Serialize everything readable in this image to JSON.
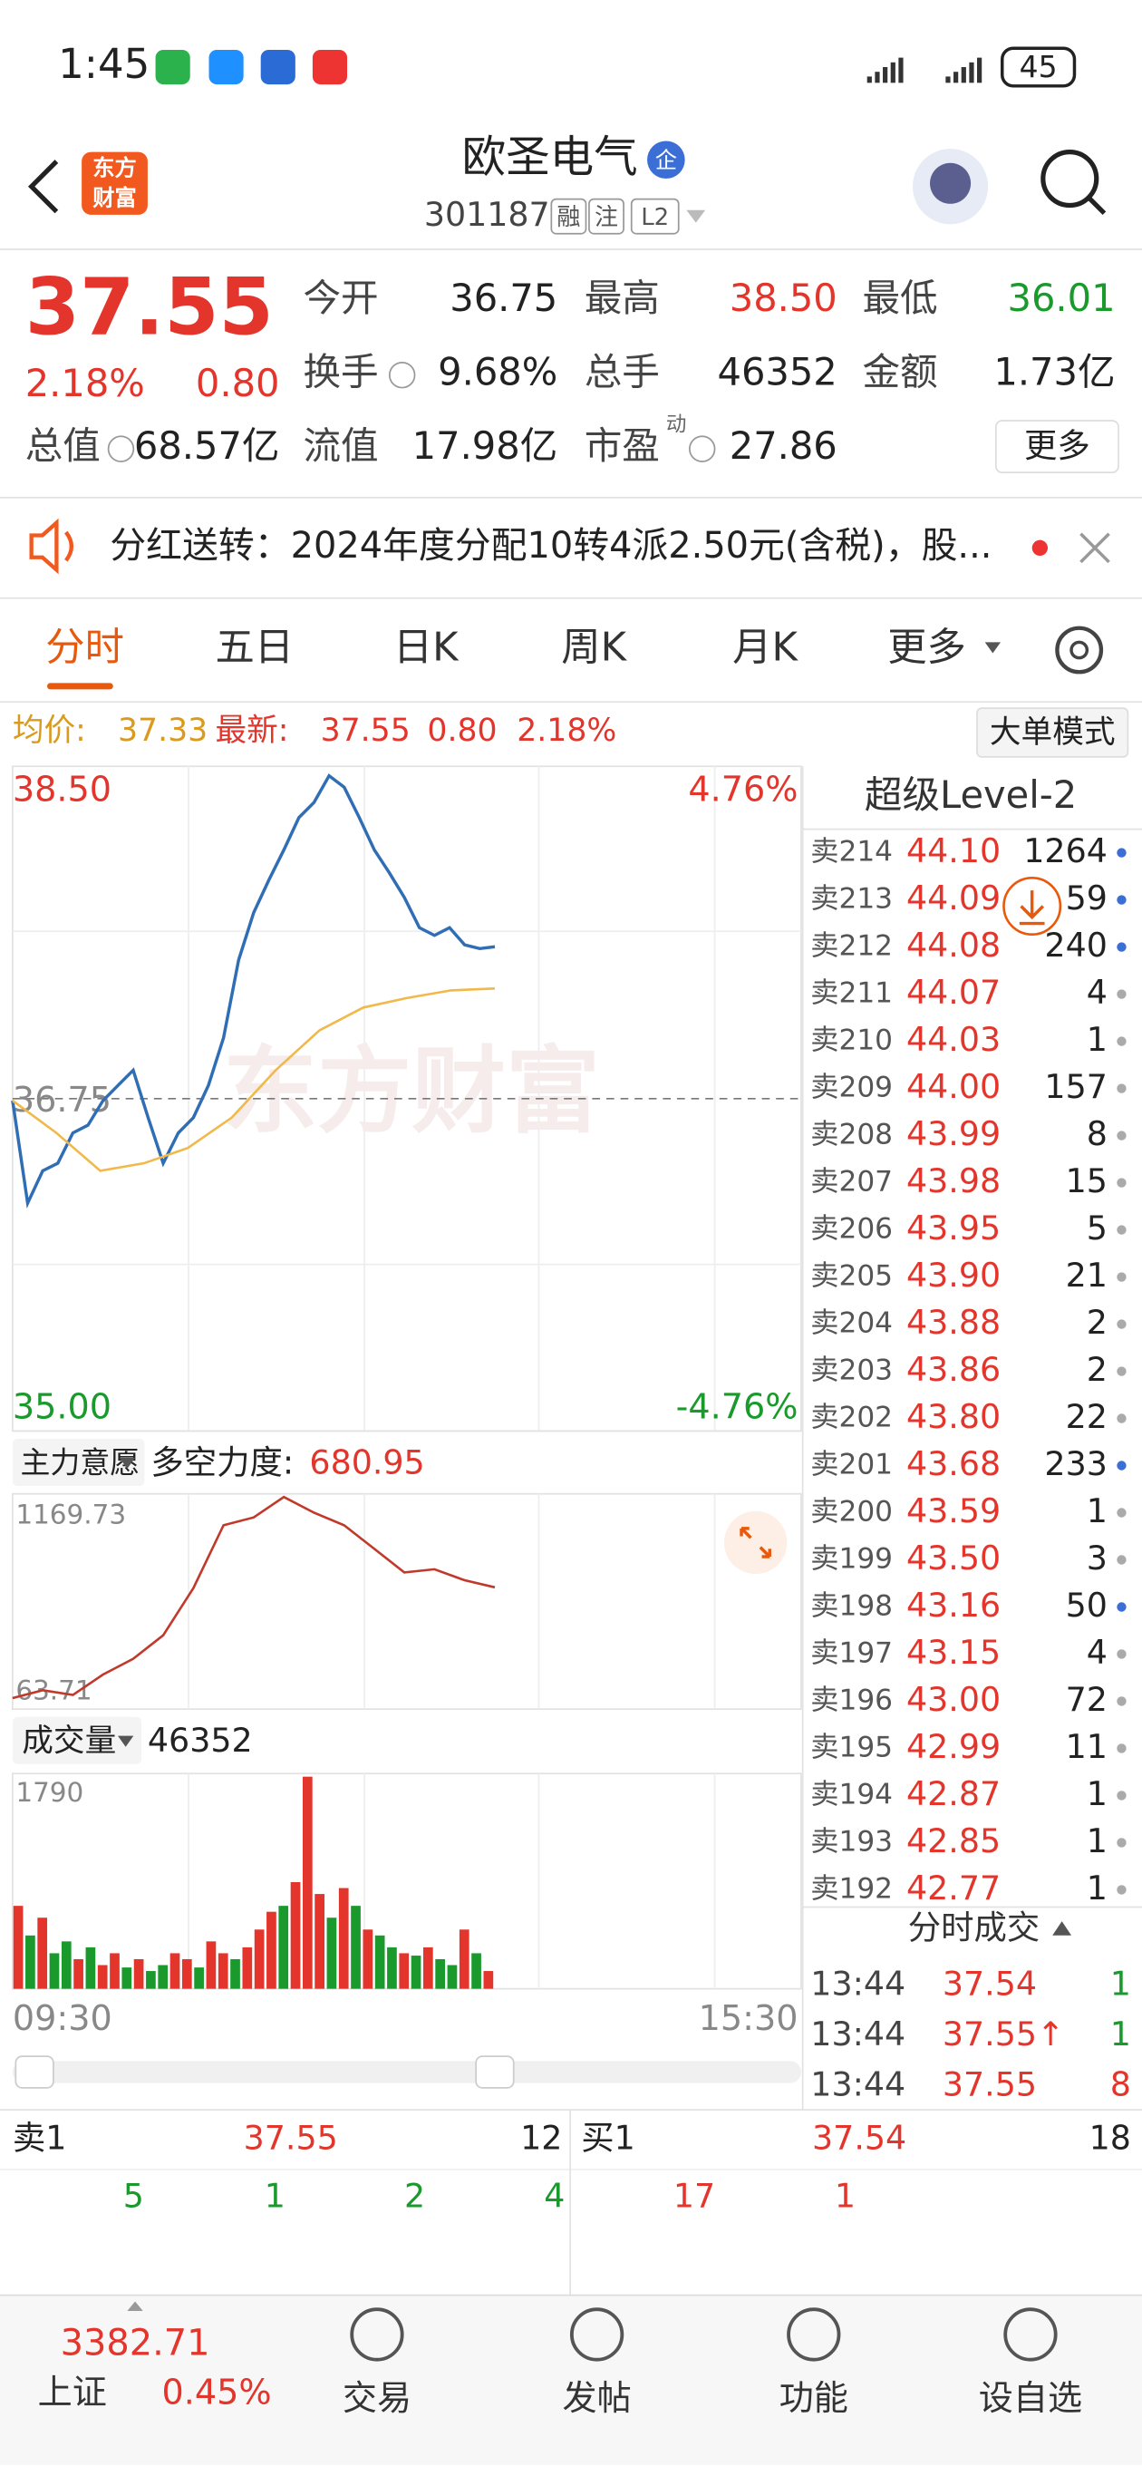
{
  "status_bar": {
    "time": "1:45",
    "battery": "45"
  },
  "header": {
    "logo": [
      "东方",
      "财富"
    ],
    "title": "欧圣电气",
    "badge": "企",
    "code": "301187",
    "tags": [
      "融",
      "注",
      "L2"
    ]
  },
  "quote": {
    "price": "37.55",
    "change_pct": "2.18%",
    "change": "0.80",
    "fields": [
      {
        "label": "今开",
        "value": "36.75",
        "color": "#222"
      },
      {
        "label": "最高",
        "value": "38.50",
        "color": "#e3352b"
      },
      {
        "label": "最低",
        "value": "36.01",
        "color": "#1a9a2c"
      },
      {
        "label": "换手",
        "value": "9.68%",
        "color": "#222"
      },
      {
        "label": "总手",
        "value": "46352",
        "color": "#222"
      },
      {
        "label": "金额",
        "value": "1.73亿",
        "color": "#222"
      },
      {
        "label": "总值",
        "value": "68.57亿",
        "color": "#222"
      },
      {
        "label": "流值",
        "value": "17.98亿",
        "color": "#222"
      },
      {
        "label": "市盈",
        "value": "27.86",
        "color": "#222"
      }
    ],
    "pe_sup": "动",
    "more": "更多"
  },
  "notice": "分红送转：2024年度分配10转4派2.50元(含税)，股...",
  "tabs": [
    "分时",
    "五日",
    "日K",
    "周K",
    "月K",
    "更多"
  ],
  "info_line": {
    "avg_label": "均价:",
    "avg": "37.33",
    "latest_label": "最新:",
    "latest": "37.55",
    "change": "0.80",
    "pct": "2.18%",
    "mode": "大单模式"
  },
  "price_chart": {
    "type": "line",
    "watermark": "东方财富",
    "ylim": [
      35,
      38.5
    ],
    "yticks": [
      {
        "value": 38.5,
        "label": "38.50"
      },
      36.75,
      {
        "value": 35,
        "label": "35.00"
      }
    ],
    "pct_labels": [
      "4.76%",
      "-4.76%"
    ],
    "series": [
      {
        "color": "#2f6db5",
        "values": [
          36.74,
          36.2,
          36.37,
          36.41,
          36.57,
          36.61,
          36.74,
          36.82,
          36.9,
          36.65,
          36.41,
          36.57,
          36.65,
          36.82,
          37.07,
          37.48,
          37.73,
          37.9,
          38.06,
          38.23,
          38.31,
          38.45,
          38.39,
          38.23,
          38.06,
          37.94,
          37.81,
          37.65,
          37.61,
          37.65,
          37.56,
          37.54,
          37.55
        ]
      },
      {
        "color": "#f0b94a",
        "values": [
          36.74,
          36.57,
          36.37,
          36.41,
          36.49,
          36.65,
          36.9,
          37.11,
          37.23,
          37.28,
          37.32,
          37.33
        ]
      }
    ]
  },
  "indicator": {
    "type": "line",
    "name": "主力意愿",
    "label": "多空力度:",
    "value": "680.95",
    "ylim": [
      63.71,
      1169.73
    ],
    "yticks": [
      1169.73,
      63.71
    ],
    "color": "#c0392b",
    "values": [
      80.7,
      123.3,
      97.7,
      208.4,
      293.5,
      421.1,
      676.4,
      1016.8,
      1059.3,
      1169.7,
      1084.6,
      1016.8,
      889.1,
      761.5,
      778.5,
      718.9,
      680.95
    ]
  },
  "volume": {
    "type": "bar",
    "name": "成交量",
    "value": "46352",
    "ylim": [
      0,
      1790
    ],
    "yticks": [
      1790
    ],
    "values": [
      700,
      450,
      600,
      300,
      400,
      250,
      350,
      200,
      300,
      180,
      250,
      150,
      200,
      300,
      250,
      180,
      400,
      300,
      250,
      350,
      500,
      650,
      700,
      900,
      1790,
      800,
      600,
      850,
      700,
      500,
      450,
      350,
      300,
      280,
      350,
      250,
      200,
      500,
      300,
      150
    ],
    "colors": [
      "#e3352b",
      "#1a9a2c",
      "#e3352b",
      "#1a9a2c",
      "#1a9a2c",
      "#e3352b",
      "#1a9a2c",
      "#e3352b",
      "#e3352b",
      "#1a9a2c",
      "#e3352b",
      "#1a9a2c",
      "#1a9a2c",
      "#e3352b",
      "#e3352b",
      "#1a9a2c",
      "#e3352b",
      "#e3352b",
      "#1a9a2c",
      "#e3352b",
      "#e3352b",
      "#e3352b",
      "#1a9a2c",
      "#e3352b",
      "#e3352b",
      "#e3352b",
      "#1a9a2c",
      "#e3352b",
      "#1a9a2c",
      "#e3352b",
      "#1a9a2c",
      "#1a9a2c",
      "#e3352b",
      "#1a9a2c",
      "#e3352b",
      "#1a9a2c",
      "#1a9a2c",
      "#e3352b",
      "#1a9a2c",
      "#e3352b"
    ]
  },
  "time_axis": [
    "09:30",
    "15:30"
  ],
  "level2": {
    "title": "超级Level-2",
    "asks": [
      {
        "label": "卖214",
        "price": "44.10",
        "vol": "1264",
        "dot": "#3b6fd6"
      },
      {
        "label": "卖213",
        "price": "44.09",
        "vol": "59",
        "dot": "#3b6fd6"
      },
      {
        "label": "卖212",
        "price": "44.08",
        "vol": "240",
        "dot": "#3b6fd6"
      },
      {
        "label": "卖211",
        "price": "44.07",
        "vol": "4",
        "dot": "#aaa"
      },
      {
        "label": "卖210",
        "price": "44.03",
        "vol": "1",
        "dot": "#aaa"
      },
      {
        "label": "卖209",
        "price": "44.00",
        "vol": "157",
        "dot": "#aaa"
      },
      {
        "label": "卖208",
        "price": "43.99",
        "vol": "8",
        "dot": "#aaa"
      },
      {
        "label": "卖207",
        "price": "43.98",
        "vol": "15",
        "dot": "#aaa"
      },
      {
        "label": "卖206",
        "price": "43.95",
        "vol": "5",
        "dot": "#aaa"
      },
      {
        "label": "卖205",
        "price": "43.90",
        "vol": "21",
        "dot": "#aaa"
      },
      {
        "label": "卖204",
        "price": "43.88",
        "vol": "2",
        "dot": "#aaa"
      },
      {
        "label": "卖203",
        "price": "43.86",
        "vol": "2",
        "dot": "#aaa"
      },
      {
        "label": "卖202",
        "price": "43.80",
        "vol": "22",
        "dot": "#aaa"
      },
      {
        "label": "卖201",
        "price": "43.68",
        "vol": "233",
        "dot": "#3b6fd6"
      },
      {
        "label": "卖200",
        "price": "43.59",
        "vol": "1",
        "dot": "#aaa"
      },
      {
        "label": "卖199",
        "price": "43.50",
        "vol": "3",
        "dot": "#aaa"
      },
      {
        "label": "卖198",
        "price": "43.16",
        "vol": "50",
        "dot": "#3b6fd6"
      },
      {
        "label": "卖197",
        "price": "43.15",
        "vol": "4",
        "dot": "#aaa"
      },
      {
        "label": "卖196",
        "price": "43.00",
        "vol": "72",
        "dot": "#aaa"
      },
      {
        "label": "卖195",
        "price": "42.99",
        "vol": "11",
        "dot": "#aaa"
      },
      {
        "label": "卖194",
        "price": "42.87",
        "vol": "1",
        "dot": "#aaa"
      },
      {
        "label": "卖193",
        "price": "42.85",
        "vol": "1",
        "dot": "#aaa"
      },
      {
        "label": "卖192",
        "price": "42.77",
        "vol": "1",
        "dot": "#aaa"
      }
    ],
    "trades_title": "分时成交",
    "trades": [
      {
        "time": "13:44",
        "price": "37.54",
        "vol": "1",
        "vol_color": "#1a9a2c"
      },
      {
        "time": "13:44",
        "price": "37.55↑",
        "vol": "1",
        "vol_color": "#1a9a2c"
      },
      {
        "time": "13:44",
        "price": "37.55",
        "vol": "8",
        "vol_color": "#e3352b"
      }
    ]
  },
  "book": {
    "sell1": {
      "label": "卖1",
      "price": "37.55",
      "vol": "12"
    },
    "buy1": {
      "label": "买1",
      "price": "37.54",
      "vol": "18"
    },
    "sell_queue": [
      "5",
      "1",
      "2",
      "4"
    ],
    "buy_queue": [
      "17",
      "1"
    ]
  },
  "bottom_nav": {
    "index_value": "3382.71",
    "index_name": "上证",
    "index_pct": "0.45%",
    "items": [
      "交易",
      "发帖",
      "功能",
      "设自选"
    ]
  }
}
